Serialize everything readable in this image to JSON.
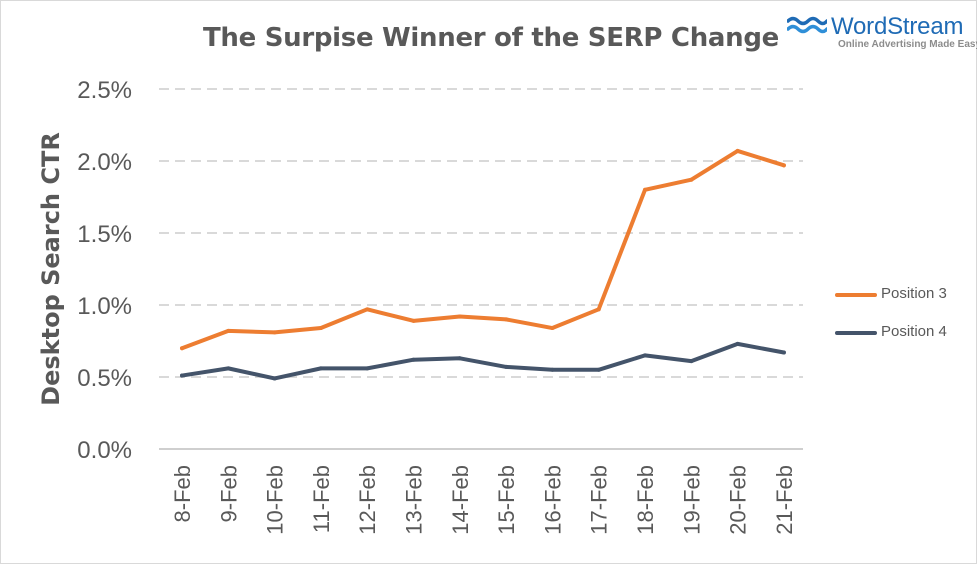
{
  "chart_data": {
    "type": "line",
    "title": "The Surpise Winner of the SERP Change",
    "xlabel": "",
    "ylabel": "Desktop Search CTR",
    "categories": [
      "8-Feb",
      "9-Feb",
      "10-Feb",
      "11-Feb",
      "12-Feb",
      "13-Feb",
      "14-Feb",
      "15-Feb",
      "16-Feb",
      "17-Feb",
      "18-Feb",
      "19-Feb",
      "20-Feb",
      "21-Feb"
    ],
    "ylim": [
      0,
      2.5
    ],
    "yticks": [
      0,
      0.5,
      1.0,
      1.5,
      2.0,
      2.5
    ],
    "ytick_labels": [
      "0.0%",
      "0.5%",
      "1.0%",
      "1.5%",
      "2.0%",
      "2.5%"
    ],
    "grid": true,
    "legend_position": "right",
    "series": [
      {
        "name": "Position 3",
        "color": "#ed7d31",
        "values": [
          0.7,
          0.82,
          0.81,
          0.84,
          0.97,
          0.89,
          0.92,
          0.9,
          0.84,
          0.97,
          1.8,
          1.87,
          2.07,
          1.97
        ]
      },
      {
        "name": "Position 4",
        "color": "#44546a",
        "values": [
          0.51,
          0.56,
          0.49,
          0.56,
          0.56,
          0.62,
          0.63,
          0.57,
          0.55,
          0.55,
          0.65,
          0.61,
          0.73,
          0.67
        ]
      }
    ]
  },
  "branding": {
    "name": "WordStream",
    "tagline": "Online Advertising Made Easy",
    "color": "#1f6bb5"
  }
}
